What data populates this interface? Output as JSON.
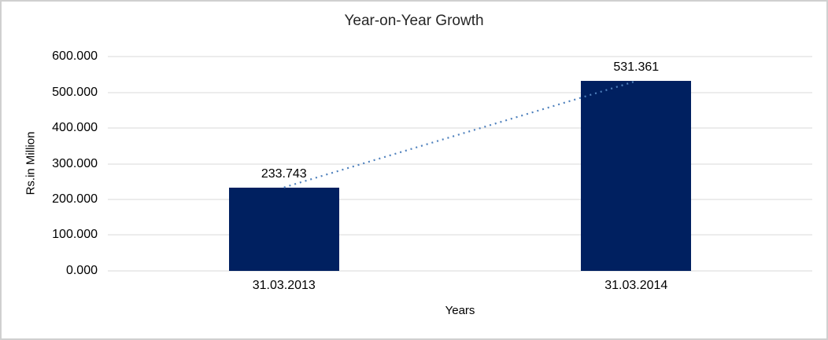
{
  "window": {
    "background": "#ffffff",
    "border_color": "#d0d0d0"
  },
  "chart_data": {
    "type": "bar",
    "title": "Year-on-Year Growth",
    "xlabel": "Years",
    "ylabel": "Rs.in Million",
    "categories": [
      "31.03.2013",
      "31.03.2014"
    ],
    "values": [
      233.743,
      531.361
    ],
    "data_labels": [
      "233.743",
      "531.361"
    ],
    "ytick_labels": [
      "600.000",
      "500.000",
      "400.000",
      "300.000",
      "200.000",
      "100.000",
      "0.000"
    ],
    "ylim": [
      0,
      600
    ],
    "grid": "horizontal",
    "legend": "none",
    "bar_color": "#002060",
    "gridline_color": "#d9d9d9",
    "trendline": {
      "style": "dotted",
      "color": "#4f81bd",
      "connects": "bar tops"
    }
  }
}
